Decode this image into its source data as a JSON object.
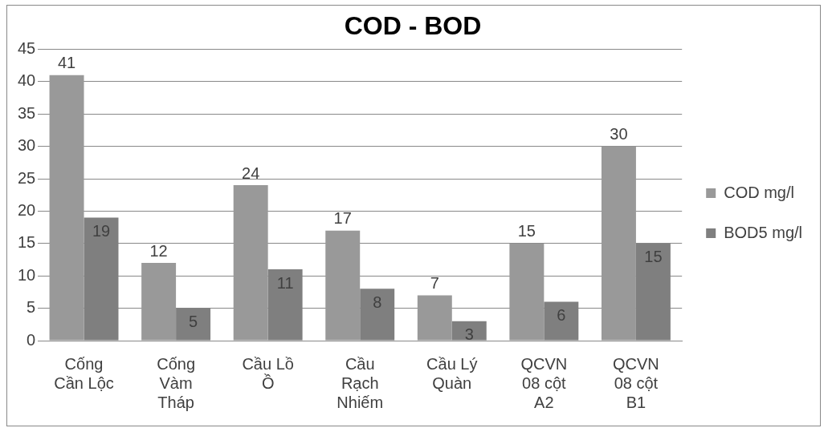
{
  "chart_data": {
    "type": "bar",
    "title": "COD - BOD",
    "categories": [
      "Cống Cần Lộc",
      "Cống Vàm Tháp",
      "Cầu Lồ Ồ",
      "Cầu Rạch Nhiếm",
      "Cầu Lý Quàn",
      "QCVN 08 cột A2",
      "QCVN 08 cột B1"
    ],
    "series": [
      {
        "name": "COD mg/l",
        "color": "#999999",
        "values": [
          41,
          12,
          24,
          17,
          7,
          15,
          30
        ]
      },
      {
        "name": "BOD5 mg/l",
        "color": "#7f7f7f",
        "values": [
          19,
          5,
          11,
          8,
          3,
          6,
          15
        ]
      }
    ],
    "ylim": [
      0,
      45
    ],
    "yticks": [
      0,
      5,
      10,
      15,
      20,
      25,
      30,
      35,
      40,
      45
    ],
    "grid": "y",
    "legend": "right",
    "data_labels": true
  }
}
